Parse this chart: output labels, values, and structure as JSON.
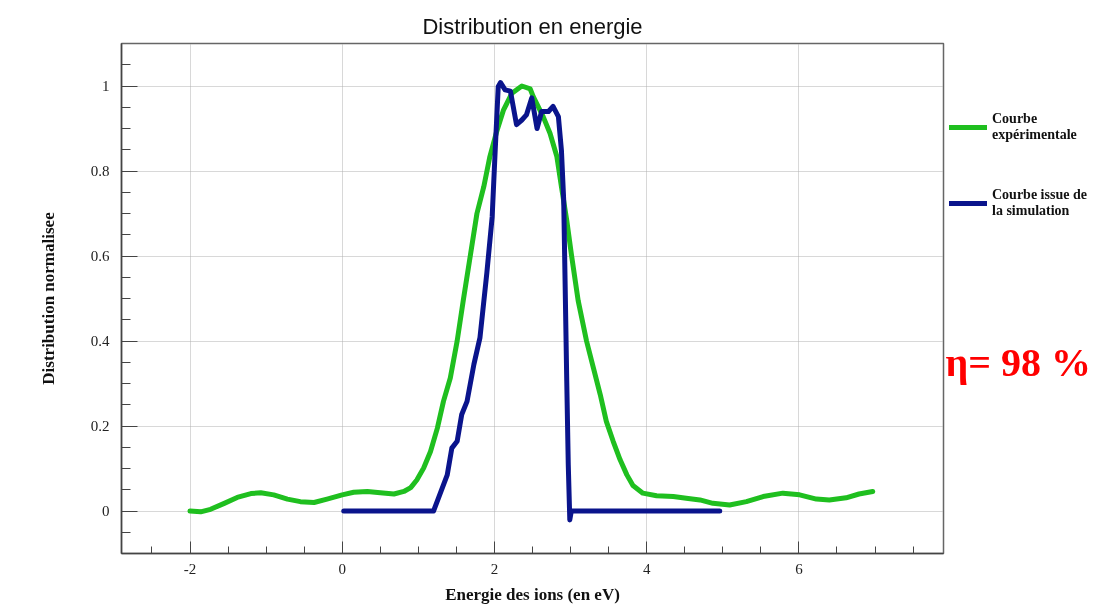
{
  "chart_data": {
    "type": "line",
    "title": "Distribution en energie",
    "xlabel": "Energie des ions (en eV)",
    "ylabel": "Distribution normalisee",
    "xlim": [
      -2.9,
      7.9
    ],
    "ylim": [
      -0.1,
      1.1
    ],
    "xticks": [
      {
        "value": -2.5,
        "label": null
      },
      -2,
      {
        "value": -1.5,
        "label": null
      },
      {
        "value": -1,
        "label": null
      },
      {
        "value": -0.5,
        "label": null
      },
      0,
      {
        "value": 0.5,
        "label": null
      },
      {
        "value": 1,
        "label": null
      },
      {
        "value": 1.5,
        "label": null
      },
      2,
      {
        "value": 2.5,
        "label": null
      },
      {
        "value": 3,
        "label": null
      },
      {
        "value": 3.5,
        "label": null
      },
      4,
      {
        "value": 4.5,
        "label": null
      },
      {
        "value": 5,
        "label": null
      },
      {
        "value": 5.5,
        "label": null
      },
      6,
      {
        "value": 6.5,
        "label": null
      },
      {
        "value": 7,
        "label": null
      },
      {
        "value": 7.5,
        "label": null
      }
    ],
    "yticks": [
      {
        "value": -0.05,
        "label": null
      },
      0,
      {
        "value": 0.05,
        "label": null
      },
      {
        "value": 0.1,
        "label": null
      },
      {
        "value": 0.15,
        "label": null
      },
      0.2,
      {
        "value": 0.25,
        "label": null
      },
      {
        "value": 0.3,
        "label": null
      },
      {
        "value": 0.35,
        "label": null
      },
      0.4,
      {
        "value": 0.45,
        "label": null
      },
      {
        "value": 0.5,
        "label": null
      },
      {
        "value": 0.55,
        "label": null
      },
      0.6,
      {
        "value": 0.65,
        "label": null
      },
      {
        "value": 0.7,
        "label": null
      },
      {
        "value": 0.75,
        "label": null
      },
      0.8,
      {
        "value": 0.85,
        "label": null
      },
      {
        "value": 0.9,
        "label": null
      },
      {
        "value": 0.95,
        "label": null
      },
      1,
      {
        "value": 1.05,
        "label": null
      }
    ],
    "grid": true,
    "legend": "right",
    "line_style": "solid",
    "series": [
      {
        "name": "Courbe expérimentale",
        "color": "#1fbf1f",
        "x": [
          -2,
          -1.86,
          -1.73,
          -1.55,
          -1.38,
          -1.2,
          -1.07,
          -0.9,
          -0.72,
          -0.55,
          -0.37,
          -0.2,
          0,
          0.15,
          0.33,
          0.5,
          0.68,
          0.81,
          0.9,
          0.98,
          1.07,
          1.16,
          1.25,
          1.33,
          1.42,
          1.51,
          1.59,
          1.77,
          1.86,
          1.94,
          2.03,
          2.12,
          2.23,
          2.36,
          2.47,
          2.51,
          2.64,
          2.73,
          2.82,
          2.88,
          2.95,
          3.01,
          3.1,
          3.21,
          3.3,
          3.39,
          3.47,
          3.56,
          3.65,
          3.74,
          3.82,
          3.95,
          4.13,
          4.35,
          4.52,
          4.7,
          4.87,
          5.09,
          5.31,
          5.53,
          5.79,
          6.01,
          6.23,
          6.4,
          6.62,
          6.79,
          6.97
        ],
        "values": [
          0,
          -0.002,
          0.004,
          0.018,
          0.032,
          0.041,
          0.043,
          0.038,
          0.028,
          0.022,
          0.02,
          0.028,
          0.038,
          0.044,
          0.046,
          0.043,
          0.04,
          0.046,
          0.055,
          0.073,
          0.101,
          0.14,
          0.195,
          0.258,
          0.313,
          0.4,
          0.495,
          0.7,
          0.763,
          0.834,
          0.893,
          0.944,
          0.983,
          1.0,
          0.993,
          0.975,
          0.928,
          0.889,
          0.834,
          0.763,
          0.684,
          0.605,
          0.495,
          0.4,
          0.337,
          0.274,
          0.211,
          0.164,
          0.121,
          0.085,
          0.06,
          0.042,
          0.036,
          0.034,
          0.03,
          0.026,
          0.018,
          0.014,
          0.022,
          0.034,
          0.042,
          0.038,
          0.028,
          0.026,
          0.031,
          0.04,
          0.046
        ]
      },
      {
        "name": "Courbe issue de la simulation",
        "color": "#0a148c",
        "x": [
          0.02,
          1.2,
          1.38,
          1.44,
          1.51,
          1.57,
          1.64,
          1.73,
          1.81,
          1.9,
          1.97,
          2.01,
          2.05,
          2.08,
          2.14,
          2.21,
          2.29,
          2.36,
          2.42,
          2.49,
          2.56,
          2.62,
          2.71,
          2.77,
          2.84,
          2.88,
          2.91,
          2.93,
          2.95,
          2.97,
          2.99,
          3.01,
          4.96
        ],
        "values": [
          0,
          0,
          0.085,
          0.148,
          0.164,
          0.227,
          0.258,
          0.345,
          0.408,
          0.56,
          0.692,
          0.849,
          0.999,
          1.008,
          0.991,
          0.988,
          0.909,
          0.92,
          0.932,
          0.972,
          0.9,
          0.94,
          0.94,
          0.952,
          0.928,
          0.849,
          0.731,
          0.52,
          0.306,
          0.109,
          -0.021,
          0,
          0
        ]
      }
    ],
    "annotations": [
      "η= 98 %"
    ]
  }
}
